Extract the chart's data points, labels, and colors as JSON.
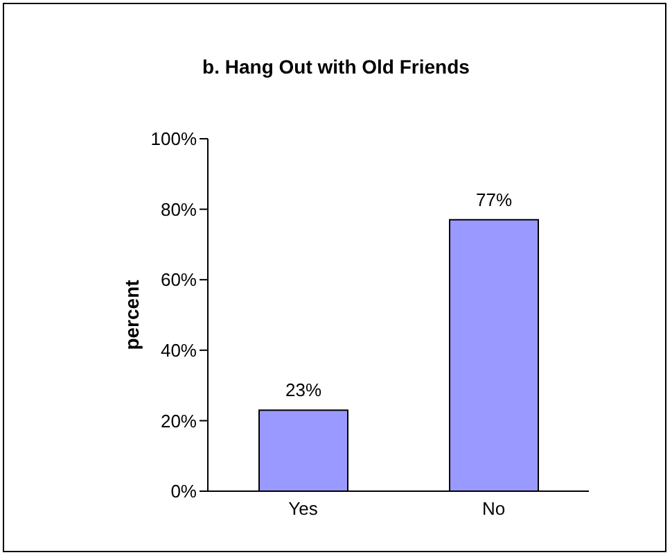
{
  "chart_data": {
    "type": "bar",
    "title": "b. Hang Out with Old Friends",
    "ylabel": "percent",
    "categories": [
      "Yes",
      "No"
    ],
    "values": [
      23,
      77
    ],
    "value_labels": [
      "23%",
      "77%"
    ],
    "color": "#9999ff",
    "ylim": [
      0,
      100
    ],
    "yticks": [
      {
        "value": 0,
        "label": "0%"
      },
      {
        "value": 20,
        "label": "20%"
      },
      {
        "value": 40,
        "label": "40%"
      },
      {
        "value": 60,
        "label": "60%"
      },
      {
        "value": 80,
        "label": "80%"
      },
      {
        "value": 100,
        "label": "100%"
      }
    ],
    "grid": false,
    "legend": false
  }
}
